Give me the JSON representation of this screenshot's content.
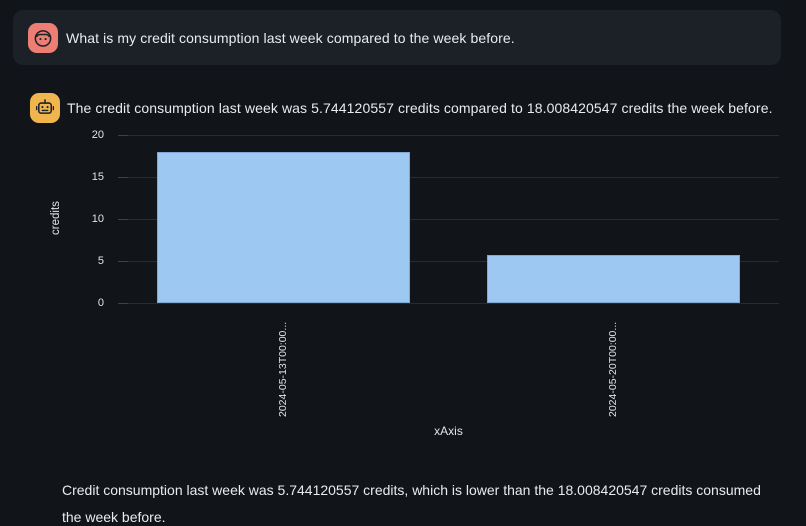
{
  "user_message": {
    "text": "What is my credit consumption last week compared to the week before."
  },
  "assistant_message": {
    "text": "The credit consumption last week was 5.744120557 credits compared to 18.008420547 credits the week before."
  },
  "chart_data": {
    "type": "bar",
    "categories": [
      "2024-05-13T00:00...",
      "2024-05-20T00:00..."
    ],
    "values": [
      18.008420547,
      5.744120557
    ],
    "title": "",
    "xlabel": "xAxis",
    "ylabel": "credits",
    "ylim": [
      0,
      20
    ],
    "yticks": [
      0,
      5,
      10,
      15,
      20
    ],
    "grid": true,
    "legend": "none",
    "bar_color": "#9cc8f2"
  },
  "summary": {
    "text": "Credit consumption last week was 5.744120557 credits, which is lower than the 18.008420547 credits consumed the week before."
  },
  "colors": {
    "page_bg": "#111419",
    "bubble_bg": "#1c2128",
    "user_avatar": "#ed7e74",
    "assistant_avatar": "#f1b54e",
    "bar_fill": "#9cc8f2",
    "bar_border": "#7fa8d2",
    "gridline": "#272c34",
    "text": "#e9ebee"
  }
}
